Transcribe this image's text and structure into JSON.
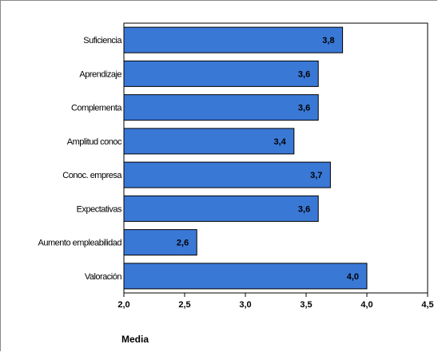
{
  "chart_data": {
    "type": "bar",
    "orientation": "horizontal",
    "categories": [
      "Suficiencia",
      "Aprendizaje",
      "Complementa",
      "Amplitud conoc",
      "Conoc. empresa",
      "Expectativas",
      "Aumento empleabilidad",
      "Valoración"
    ],
    "values": [
      3.8,
      3.6,
      3.6,
      3.4,
      3.7,
      3.6,
      2.6,
      4.0
    ],
    "value_labels": [
      "3,8",
      "3,6",
      "3,6",
      "3,4",
      "3,7",
      "3,6",
      "2,6",
      "4,0"
    ],
    "xlabel": "Media",
    "xlim": [
      2.0,
      4.5
    ],
    "xticks": [
      "2,0",
      "2,5",
      "3,0",
      "3,5",
      "4,0",
      "4,5"
    ],
    "bar_color": "#3a78d6",
    "grid": false
  }
}
